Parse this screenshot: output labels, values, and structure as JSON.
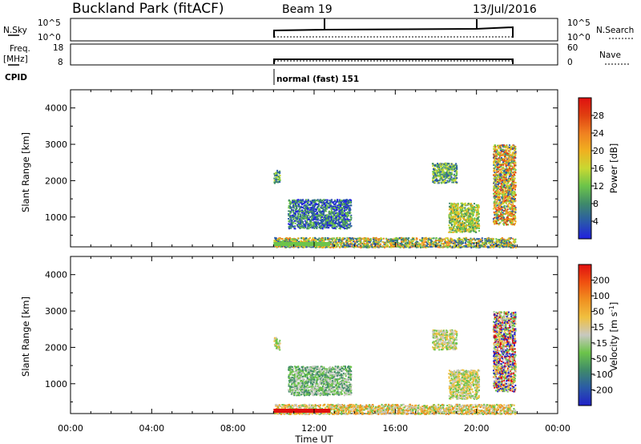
{
  "header": {
    "station": "Buckland Park (fitACF)",
    "beam": "Beam 19",
    "date": "13/Jul/2016"
  },
  "meta_panels": {
    "nsky": {
      "label": "N.Sky",
      "ticks": [
        "10^5",
        "10^0"
      ]
    },
    "nsearch": {
      "label": "N.Search",
      "ticks": [
        "10^5",
        "10^0"
      ]
    },
    "freq": {
      "label_line1": "Freq.",
      "label_line2": "[MHz]",
      "ticks": [
        "18",
        "8"
      ]
    },
    "nave": {
      "label": "Nave",
      "ticks": [
        "60",
        "0"
      ]
    },
    "cpid": {
      "label": "CPID",
      "mode": "normal (fast) 151"
    }
  },
  "power_colorbar": {
    "label": "Power [dB]",
    "ticks": [
      "28",
      "24",
      "20",
      "16",
      "12",
      "8",
      "4"
    ],
    "colors": [
      "#2020e0",
      "#2a5aa8",
      "#3f8a6a",
      "#6cc44a",
      "#c8d832",
      "#f0b020",
      "#f08020",
      "#e04010",
      "#e01010"
    ]
  },
  "velocity_colorbar": {
    "label_main": "Velocity [m s",
    "label_sup": "-1",
    "label_end": "]",
    "ticks": [
      "200",
      "100",
      "50",
      "15",
      "-15",
      "-50",
      "-100",
      "-200"
    ],
    "colors": [
      "#2020c8",
      "#2a5aa8",
      "#3f8a6a",
      "#6cc44a",
      "#c8c8c0",
      "#f0c040",
      "#f09020",
      "#f05010",
      "#e01010"
    ]
  },
  "chart_data": [
    {
      "type": "heatmap",
      "title": "Power",
      "ylabel": "Slant Range [km]",
      "xlabel": "Time UT",
      "x_ticks": [
        "00:00",
        "04:00",
        "08:00",
        "12:00",
        "16:00",
        "20:00",
        "00:00"
      ],
      "y_ticks": [
        "1000",
        "2000",
        "3000",
        "4000"
      ],
      "xlim_hours": [
        0,
        24
      ],
      "ylim_km": [
        180,
        4500
      ],
      "data_coverage_hours": [
        10.0,
        21.9
      ],
      "echo_regions": [
        {
          "t0": 10.0,
          "t1": 10.3,
          "r0": 1950,
          "r1": 2300,
          "level": "medium"
        },
        {
          "t0": 10.7,
          "t1": 13.8,
          "r0": 700,
          "r1": 1500,
          "level": "low-medium"
        },
        {
          "t0": 17.8,
          "t1": 19.0,
          "r0": 1950,
          "r1": 2500,
          "level": "medium"
        },
        {
          "t0": 18.6,
          "t1": 20.1,
          "r0": 600,
          "r1": 1400,
          "level": "medium-high"
        },
        {
          "t0": 20.8,
          "t1": 21.9,
          "r0": 800,
          "r1": 3000,
          "level": "high"
        },
        {
          "t0": 10.0,
          "t1": 21.9,
          "r0": 180,
          "r1": 450,
          "level": "ground scatter"
        }
      ]
    },
    {
      "type": "heatmap",
      "title": "Velocity",
      "ylabel": "Slant Range [km]",
      "xlabel": "Time UT",
      "x_ticks": [
        "00:00",
        "04:00",
        "08:00",
        "12:00",
        "16:00",
        "20:00",
        "00:00"
      ],
      "y_ticks": [
        "1000",
        "2000",
        "3000",
        "4000"
      ],
      "xlim_hours": [
        0,
        24
      ],
      "ylim_km": [
        180,
        4500
      ],
      "data_coverage_hours": [
        10.0,
        21.9
      ]
    }
  ],
  "x_axis_label": "Time UT"
}
